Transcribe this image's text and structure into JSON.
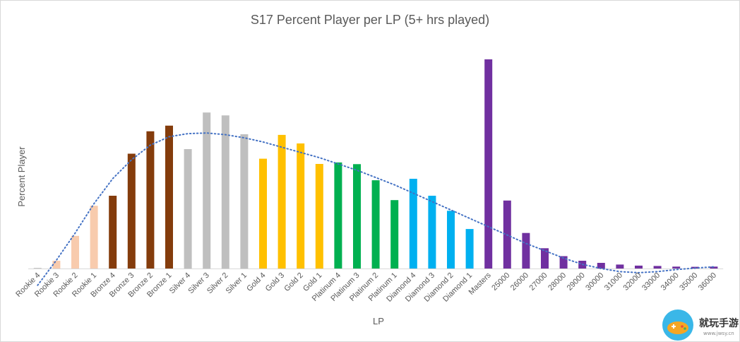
{
  "chart_data": {
    "type": "bar",
    "title": "S17 Percent Player per LP (5+ hrs played)",
    "xlabel": "LP",
    "ylabel": "Percent Player",
    "ylim": [
      0,
      100
    ],
    "y_ticks_shown": false,
    "grid": false,
    "legend": "none",
    "trendline": {
      "style": "dotted",
      "kind": "polynomial",
      "color": "#4472c4"
    },
    "categories": [
      "Rookie 4",
      "Rookie 3",
      "Rookie 2",
      "Rookie 1",
      "Bronze 4",
      "Bronze 3",
      "Bronze 2",
      "Bronze 1",
      "Silver 4",
      "Silver 3",
      "Silver 2",
      "Silver 1",
      "Gold 4",
      "Gold 3",
      "Gold 2",
      "Gold 1",
      "Platinum 4",
      "Platinum 3",
      "Platinum 2",
      "Platinum 1",
      "Diamond 4",
      "Diamond 3",
      "Diamond 2",
      "Diamond 1",
      "Masters",
      "25000",
      "26000",
      "27000",
      "28000",
      "29000",
      "30000",
      "31000",
      "32000",
      "33000",
      "34000",
      "35000",
      "36000"
    ],
    "values": [
      0.3,
      3.7,
      15.6,
      30.0,
      34.8,
      54.9,
      65.6,
      68.3,
      57.1,
      74.6,
      73.2,
      64.2,
      52.5,
      63.9,
      59.8,
      50.0,
      50.7,
      49.9,
      42.2,
      32.7,
      42.9,
      34.8,
      27.6,
      18.9,
      100.0,
      32.5,
      17.0,
      9.7,
      5.9,
      3.7,
      2.7,
      1.9,
      1.4,
      1.2,
      0.9,
      0.8,
      0.9
    ],
    "colors": [
      "#c9c9c9",
      "#f8cbad",
      "#f8cbad",
      "#f8cbad",
      "#843c0c",
      "#843c0c",
      "#843c0c",
      "#843c0c",
      "#bfbfbf",
      "#bfbfbf",
      "#bfbfbf",
      "#bfbfbf",
      "#ffc000",
      "#ffc000",
      "#ffc000",
      "#ffc000",
      "#00b050",
      "#00b050",
      "#00b050",
      "#00b050",
      "#00b0f0",
      "#00b0f0",
      "#00b0f0",
      "#00b0f0",
      "#7030a0",
      "#7030a0",
      "#7030a0",
      "#7030a0",
      "#7030a0",
      "#7030a0",
      "#7030a0",
      "#7030a0",
      "#7030a0",
      "#7030a0",
      "#7030a0",
      "#7030a0",
      "#7030a0"
    ],
    "trendline_values": [
      -8,
      4,
      17,
      31,
      43,
      52,
      59,
      63,
      64.5,
      64.8,
      64,
      62.5,
      60.5,
      58,
      55.5,
      53,
      50,
      47,
      43.5,
      40,
      36,
      32,
      28,
      24,
      20,
      16,
      12,
      8.5,
      5,
      2,
      0,
      -1.5,
      -2,
      -1.5,
      -0.5,
      0.2,
      0.8
    ]
  },
  "watermark": {
    "text": "就玩手游",
    "url": "www.jwsy.cn",
    "icon": "gamepad-icon"
  }
}
